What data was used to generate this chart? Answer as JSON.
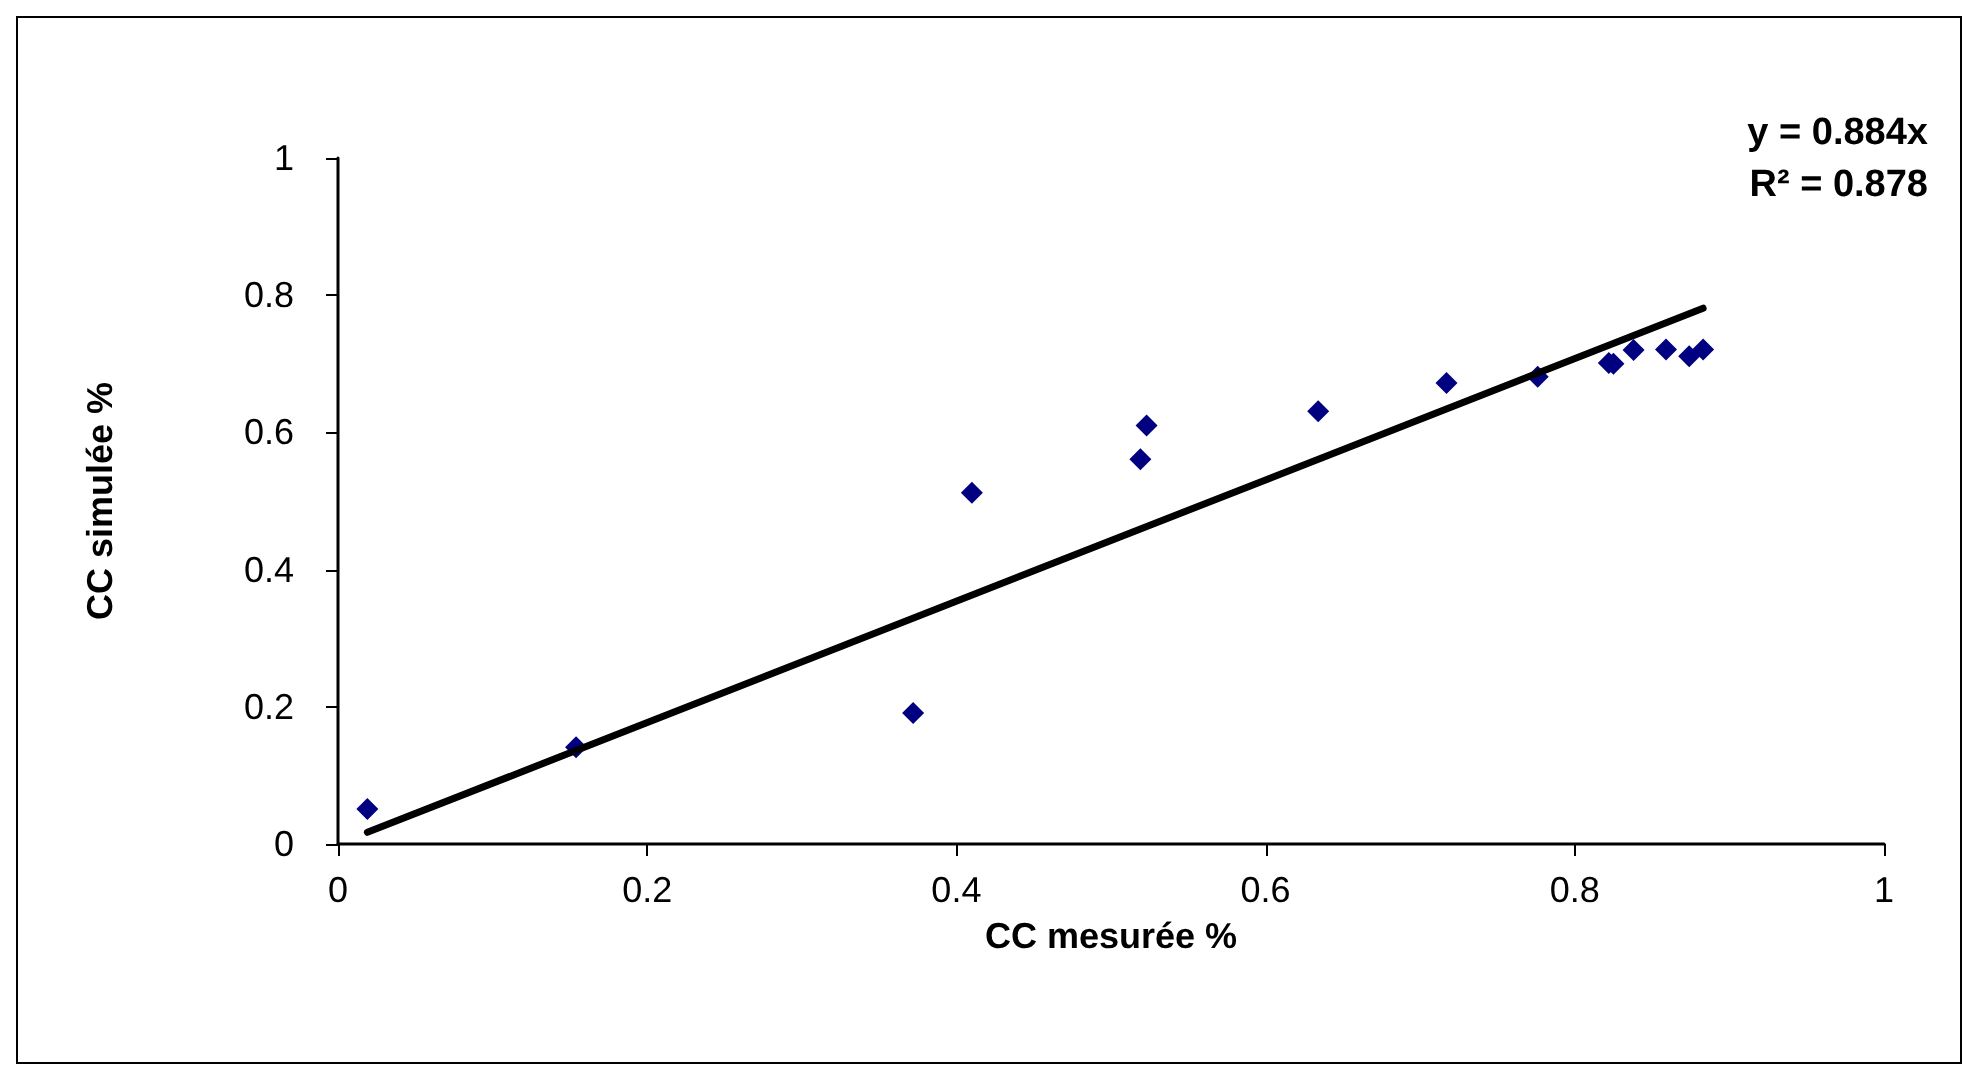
{
  "chart_data": {
    "type": "scatter",
    "xlabel": "CC mesurée %",
    "ylabel": "CC simulée %",
    "xlim": [
      0,
      1
    ],
    "ylim": [
      0,
      1
    ],
    "xticks": [
      0,
      0.2,
      0.4,
      0.6,
      0.8,
      1
    ],
    "yticks": [
      0,
      0.2,
      0.4,
      0.6,
      0.8,
      1
    ],
    "grid": false,
    "marker": "diamond",
    "annotations": [
      "y = 0.884x",
      "R² = 0.878"
    ],
    "series": [
      {
        "color": "#000080",
        "x": [
          0.019,
          0.154,
          0.372,
          0.41,
          0.519,
          0.523,
          0.634,
          0.717,
          0.776,
          0.822,
          0.825,
          0.838,
          0.859,
          0.874,
          0.883
        ],
        "values": [
          0.051,
          0.141,
          0.191,
          0.512,
          0.561,
          0.61,
          0.631,
          0.672,
          0.681,
          0.701,
          0.7,
          0.72,
          0.721,
          0.711,
          0.721
        ]
      },
      {
        "type": "line",
        "color": "#000000",
        "marker": "none",
        "line_style": "solid",
        "x": [
          0.019,
          0.883
        ],
        "values": [
          0.017,
          0.781
        ]
      }
    ]
  }
}
